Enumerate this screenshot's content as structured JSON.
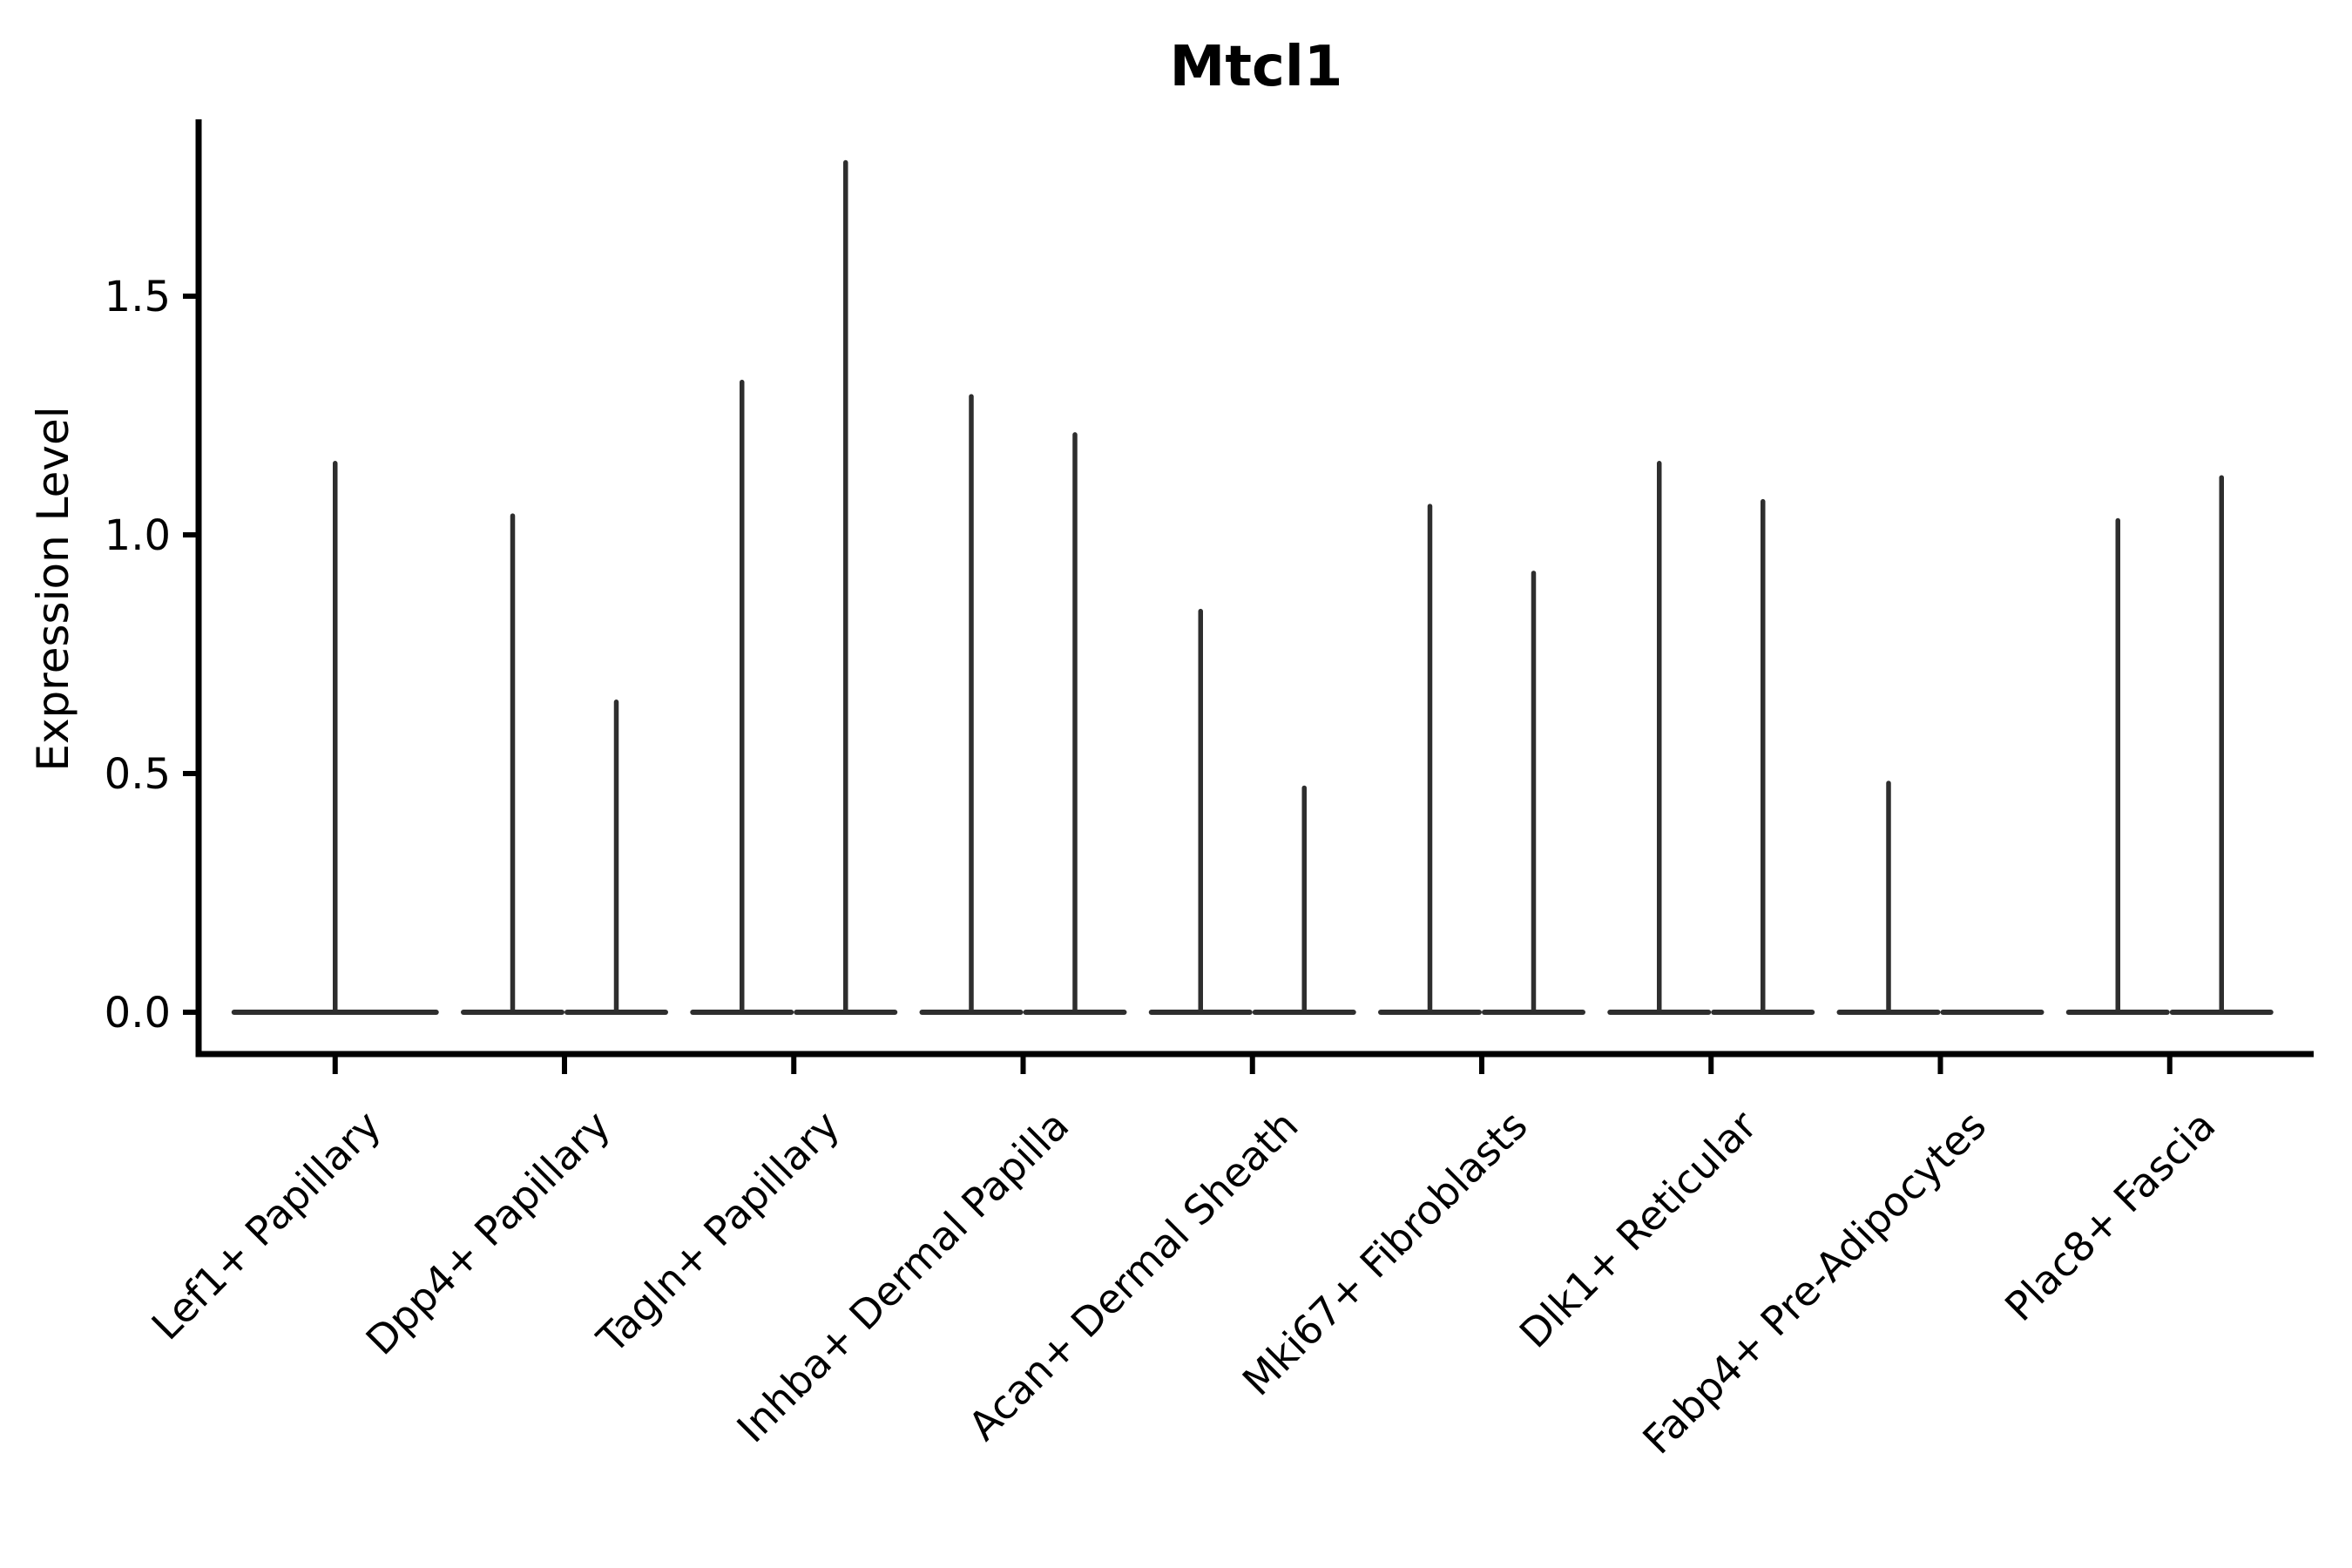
{
  "figure": {
    "title": "Mtcl1",
    "y_axis_title": "Expression Level",
    "background_color": "#ffffff",
    "axis_color": "#000000",
    "violin_color": "#2e2e2e"
  },
  "chart_data": {
    "type": "violin",
    "title": "Mtcl1",
    "xlabel": "",
    "ylabel": "Expression Level",
    "ylim": [
      0,
      1.87
    ],
    "grid": false,
    "legend_position": "none",
    "description": "Sparse single-cell expression violins: each violin collapses to a flat baseline at 0 with a thin central spike up to its maximum expression value. Most categories contain two side-by-side violins; Lef1+ Papillary has one full-width violin and the right violin of Fabp4+ Pre-Adipocytes is flat at 0.",
    "yticks": [
      {
        "value": 0.0,
        "label": "0.0"
      },
      {
        "value": 0.5,
        "label": "0.5"
      },
      {
        "value": 1.0,
        "label": "1.0"
      },
      {
        "value": 1.5,
        "label": "1.5"
      }
    ],
    "categories": [
      {
        "label": "Lef1+ Papillary",
        "violins": [
          {
            "position": 0,
            "max": 1.15
          }
        ]
      },
      {
        "label": "Dpp4+ Papillary",
        "violins": [
          {
            "position": -1,
            "max": 1.04
          },
          {
            "position": 1,
            "max": 0.65
          }
        ]
      },
      {
        "label": "Tagln+ Papillary",
        "violins": [
          {
            "position": -1,
            "max": 1.32
          },
          {
            "position": 1,
            "max": 1.78
          }
        ]
      },
      {
        "label": "Inhba+ Dermal Papilla",
        "violins": [
          {
            "position": -1,
            "max": 1.29
          },
          {
            "position": 1,
            "max": 1.21
          }
        ]
      },
      {
        "label": "Acan+ Dermal Sheath",
        "violins": [
          {
            "position": -1,
            "max": 0.84
          },
          {
            "position": 1,
            "max": 0.47
          }
        ]
      },
      {
        "label": "Mki67+ Fibroblasts",
        "violins": [
          {
            "position": -1,
            "max": 1.06
          },
          {
            "position": 1,
            "max": 0.92
          }
        ]
      },
      {
        "label": "Dlk1+ Reticular",
        "violins": [
          {
            "position": -1,
            "max": 1.15
          },
          {
            "position": 1,
            "max": 1.07
          }
        ]
      },
      {
        "label": "Fabp4+ Pre-Adipocytes",
        "violins": [
          {
            "position": -1,
            "max": 0.48
          },
          {
            "position": 1,
            "max": 0.0
          }
        ]
      },
      {
        "label": "Plac8+ Fascia",
        "violins": [
          {
            "position": -1,
            "max": 1.03
          },
          {
            "position": 1,
            "max": 1.12
          }
        ]
      }
    ]
  }
}
